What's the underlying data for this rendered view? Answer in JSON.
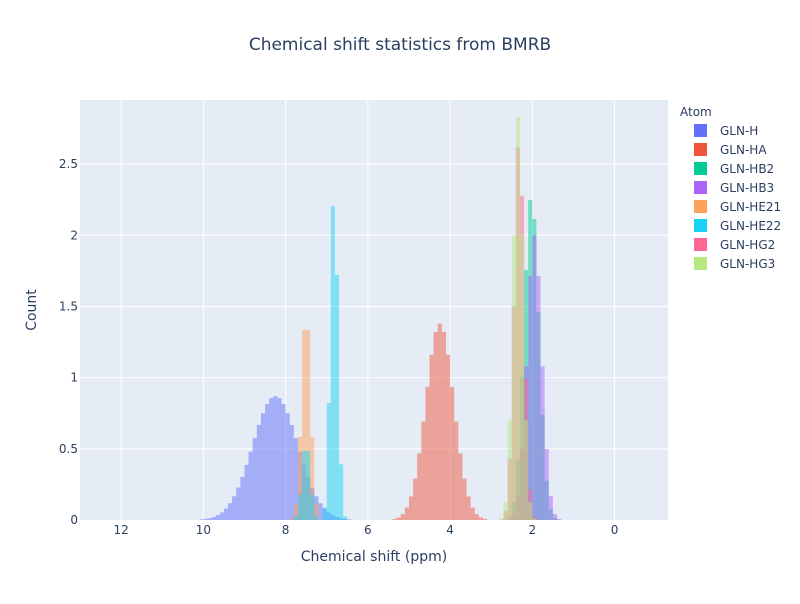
{
  "chart_data": {
    "type": "histogram",
    "title": "Chemical shift statistics from BMRB",
    "xlabel": "Chemical shift (ppm)",
    "ylabel": "Count",
    "xlim": [
      13.0,
      -1.3
    ],
    "ylim": [
      0,
      2.95
    ],
    "x_reversed": true,
    "xticks": [
      12,
      10,
      8,
      6,
      4,
      2,
      0
    ],
    "yticks": [
      0,
      0.5,
      1,
      1.5,
      2,
      2.5
    ],
    "ytick_labels": [
      "0",
      "0.5",
      "1",
      "1.5",
      "2",
      "2.5"
    ],
    "bin_width": 0.1,
    "grid": true,
    "legend_title": "Atom",
    "legend_position": "right",
    "series": [
      {
        "name": "GLN-H",
        "color": "#636efa",
        "peaks": [
          {
            "mean": 8.25,
            "sd": 0.55,
            "height": 0.87
          }
        ]
      },
      {
        "name": "GLN-HA",
        "color": "#ef553b",
        "peaks": [
          {
            "mean": 4.25,
            "sd": 0.34,
            "height": 1.38
          }
        ]
      },
      {
        "name": "GLN-HB2",
        "color": "#00cc96",
        "peaks": [
          {
            "mean": 2.02,
            "sd": 0.18,
            "height": 2.28
          }
        ]
      },
      {
        "name": "GLN-HB3",
        "color": "#ab63fa",
        "peaks": [
          {
            "mean": 1.95,
            "sd": 0.18,
            "height": 2.0
          }
        ]
      },
      {
        "name": "GLN-HE21",
        "color": "#ffa15a",
        "peaks": [
          {
            "mean": 7.5,
            "sd": 0.11,
            "height": 1.48
          }
        ]
      },
      {
        "name": "GLN-HE22",
        "color": "#19d3f3",
        "peaks": [
          {
            "mean": 6.82,
            "sd": 0.09,
            "height": 2.33
          },
          {
            "mean": 7.5,
            "sd": 0.1,
            "height": 0.55
          }
        ]
      },
      {
        "name": "GLN-HG2",
        "color": "#ff6692",
        "peaks": [
          {
            "mean": 2.32,
            "sd": 0.12,
            "height": 2.7
          }
        ]
      },
      {
        "name": "GLN-HG3",
        "color": "#b6e880",
        "peaks": [
          {
            "mean": 2.35,
            "sd": 0.12,
            "height": 2.83
          }
        ]
      }
    ]
  }
}
